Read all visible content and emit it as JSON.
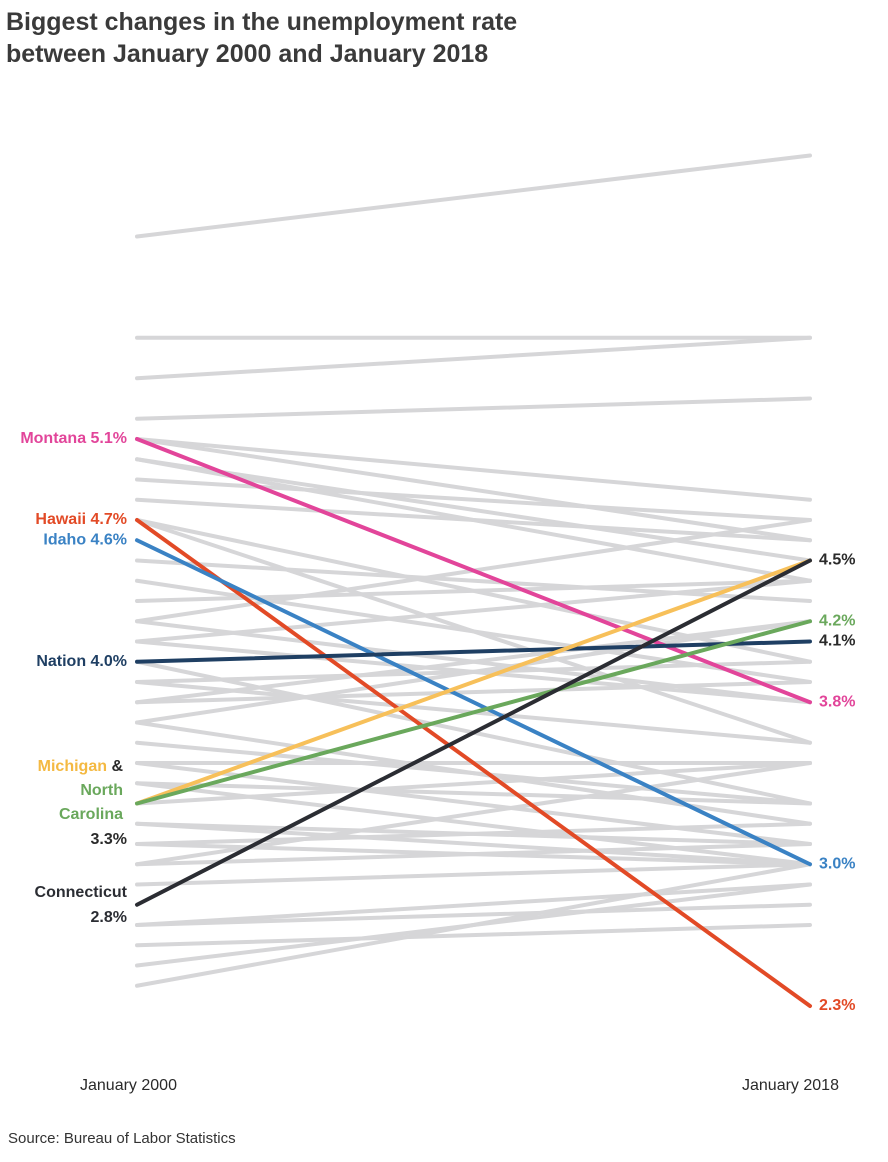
{
  "title_line1": "Biggest changes in the unemployment rate",
  "title_line2": "between January 2000 and January 2018",
  "source": "Source: Bureau of Labor Statistics",
  "chart_data": {
    "type": "line",
    "x": [
      "January 2000",
      "January 2018"
    ],
    "yunit": "%",
    "background_color": "#d6d6d8",
    "series": [
      {
        "name": "Montana",
        "values": [
          5.1,
          3.8
        ],
        "color": "#e2459a",
        "highlight": true
      },
      {
        "name": "Hawaii",
        "values": [
          4.7,
          2.3
        ],
        "color": "#e24a26",
        "highlight": true
      },
      {
        "name": "Idaho",
        "values": [
          4.6,
          3.0
        ],
        "color": "#3a82c4",
        "highlight": true
      },
      {
        "name": "Nation",
        "values": [
          4.0,
          4.1
        ],
        "color": "#1f3f63",
        "highlight": true
      },
      {
        "name": "Michigan",
        "values": [
          3.3,
          4.5
        ],
        "color": "#f7c05a",
        "highlight": true
      },
      {
        "name": "North Carolina",
        "values": [
          3.3,
          4.2
        ],
        "color": "#6aa85c",
        "highlight": true
      },
      {
        "name": "Connecticut",
        "values": [
          2.8,
          4.5
        ],
        "color": "#2b2d33",
        "highlight": true
      }
    ],
    "background_lines": [
      [
        6.1,
        6.5
      ],
      [
        5.6,
        5.6
      ],
      [
        5.4,
        5.6
      ],
      [
        5.2,
        5.3
      ],
      [
        5.1,
        4.8
      ],
      [
        5.1,
        4.6
      ],
      [
        5.0,
        4.5
      ],
      [
        5.0,
        4.4
      ],
      [
        4.9,
        4.7
      ],
      [
        4.8,
        4.6
      ],
      [
        4.7,
        4.0
      ],
      [
        4.7,
        3.6
      ],
      [
        4.5,
        4.3
      ],
      [
        4.4,
        3.9
      ],
      [
        4.3,
        4.4
      ],
      [
        4.2,
        4.7
      ],
      [
        4.2,
        3.8
      ],
      [
        4.1,
        4.4
      ],
      [
        4.1,
        3.8
      ],
      [
        4.0,
        3.3
      ],
      [
        3.9,
        4.0
      ],
      [
        3.9,
        3.6
      ],
      [
        3.8,
        4.2
      ],
      [
        3.8,
        3.9
      ],
      [
        3.7,
        4.2
      ],
      [
        3.7,
        3.2
      ],
      [
        3.6,
        3.3
      ],
      [
        3.5,
        3.5
      ],
      [
        3.5,
        3.1
      ],
      [
        3.4,
        3.3
      ],
      [
        3.4,
        3.0
      ],
      [
        3.3,
        3.5
      ],
      [
        3.2,
        3.1
      ],
      [
        3.2,
        3.0
      ],
      [
        3.1,
        3.0
      ],
      [
        3.1,
        3.2
      ],
      [
        3.0,
        3.5
      ],
      [
        3.0,
        3.1
      ],
      [
        2.9,
        3.0
      ],
      [
        2.7,
        2.9
      ],
      [
        2.7,
        2.8
      ],
      [
        2.6,
        2.7
      ],
      [
        2.5,
        2.9
      ],
      [
        2.4,
        3.0
      ]
    ],
    "left_labels": [
      {
        "text": "Montana 5.1%",
        "value": 5.1,
        "color": "#e2459a"
      },
      {
        "text": "Hawaii 4.7%",
        "value": 4.7,
        "color": "#e24a26"
      },
      {
        "text": "Idaho 4.6%",
        "value": 4.6,
        "color": "#3a82c4"
      },
      {
        "text": "Nation 4.0%",
        "value": 4.0,
        "color": "#1f3f63"
      }
    ],
    "michigan_nc_label": {
      "michigan": "Michigan",
      "amp": " &",
      "north": "North",
      "carolina": "Carolina",
      "value": "3.3%",
      "michigan_color": "#f4b942",
      "nc_color": "#6aa85c",
      "value_color": "#2a2a2a"
    },
    "connecticut_label": {
      "name": "Connecticut",
      "value": "2.8%",
      "color": "#2b2d33"
    },
    "right_labels": [
      {
        "text": "4.5%",
        "value": 4.5,
        "color": "#2a2a2a"
      },
      {
        "text": "4.2%",
        "value": 4.2,
        "color": "#6aa85c"
      },
      {
        "text": "4.1%",
        "value": 4.1,
        "color": "#2a2a2a"
      },
      {
        "text": "3.8%",
        "value": 3.8,
        "color": "#e2459a"
      },
      {
        "text": "3.0%",
        "value": 3.0,
        "color": "#3a82c4"
      },
      {
        "text": "2.3%",
        "value": 2.3,
        "color": "#e24a26"
      }
    ]
  }
}
